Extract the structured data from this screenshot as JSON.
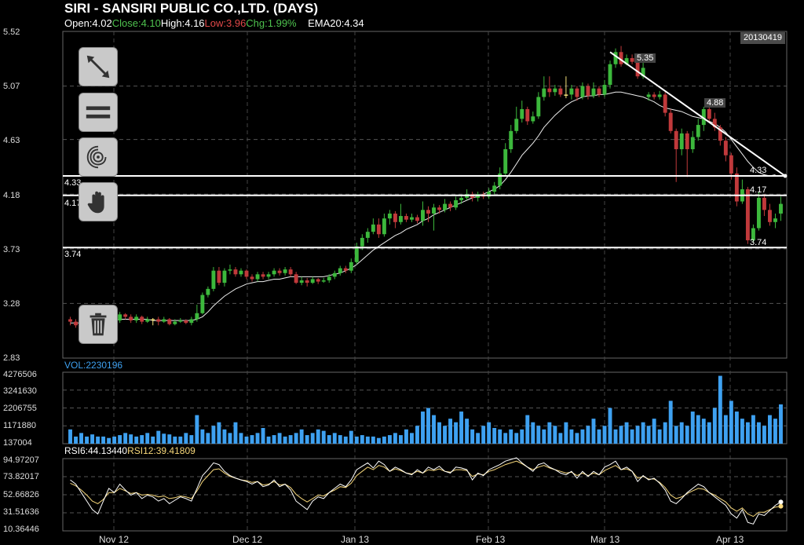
{
  "header": {
    "title": "SIRI - SANSIRI PUBLIC CO.,LTD. (DAYS)",
    "open": "Open:4.02",
    "close": "Close:4.10",
    "high": "High:4.16",
    "low": "Low:3.96",
    "chg": "Chg:1.99%",
    "ema": "EMA20:4.34"
  },
  "colors": {
    "up": "#3cb83c",
    "down": "#c0393b",
    "doji": "#f5e27a",
    "volume": "#3ea1f1",
    "open_color": "#ffffff",
    "close_color": "#4ec24e",
    "high_color": "#ffffff",
    "low_color": "#e04848",
    "chg_color": "#4ec24e",
    "rsi6": "#ffffff",
    "rsi12": "#f6d77a"
  },
  "price_axis": [
    "5.52",
    "5.07",
    "4.63",
    "4.18",
    "3.73",
    "3.28",
    "2.83"
  ],
  "date_badge": "20130419",
  "x_labels": [
    "Nov 12",
    "Dec 12",
    "Jan 13",
    "Feb 13",
    "Mar 13",
    "Apr 13"
  ],
  "trendline_labels": [
    "5.35",
    "4.88",
    "4.33",
    "4.17",
    "3.74"
  ],
  "hlines": [
    {
      "value": 4.33,
      "left_label": "4.33",
      "right_label": "4.33"
    },
    {
      "value": 4.17,
      "left_label": "4.17",
      "right_label": "4.17"
    },
    {
      "value": 3.74,
      "left_label": "3.74",
      "right_label": "3.74"
    }
  ],
  "volume": {
    "title": "VOL:2230196",
    "axis": [
      "4276506",
      "3241630",
      "2206755",
      "1171880",
      "137004"
    ]
  },
  "rsi": {
    "title6": "RSI6:44.13440",
    "title12": "RSI12:39.41809",
    "axis": [
      "94.97207",
      "73.82017",
      "52.66826",
      "31.51636",
      "10.36446"
    ]
  },
  "tools": [
    {
      "name": "draw-line-icon"
    },
    {
      "name": "hline-icon"
    },
    {
      "name": "fingerprint-icon"
    },
    {
      "name": "hand-icon"
    },
    {
      "name": "trash-icon"
    }
  ],
  "chart_data": {
    "type": "candlestick",
    "title": "SIRI - SANSIRI PUBLIC CO.,LTD. (DAYS)",
    "ylim": [
      2.83,
      5.52
    ],
    "candles": [
      [
        3.15,
        3.13,
        3.17,
        3.1
      ],
      [
        3.13,
        3.1,
        3.15,
        3.08
      ],
      [
        3.1,
        3.13,
        3.16,
        3.08
      ],
      [
        3.13,
        3.13,
        3.14,
        3.12
      ],
      [
        3.12,
        3.04,
        3.14,
        3.0
      ],
      [
        3.04,
        3.1,
        3.13,
        3.02
      ],
      [
        3.1,
        3.12,
        3.15,
        3.08
      ],
      [
        3.12,
        3.17,
        3.19,
        3.1
      ],
      [
        3.17,
        3.14,
        3.19,
        3.12
      ],
      [
        3.14,
        3.19,
        3.21,
        3.12
      ],
      [
        3.19,
        3.17,
        3.2,
        3.15
      ],
      [
        3.17,
        3.14,
        3.19,
        3.12
      ],
      [
        3.14,
        3.17,
        3.19,
        3.12
      ],
      [
        3.17,
        3.13,
        3.18,
        3.11
      ],
      [
        3.13,
        3.15,
        3.17,
        3.12
      ],
      [
        3.15,
        3.15,
        3.16,
        3.1
      ],
      [
        3.15,
        3.13,
        3.17,
        3.1
      ],
      [
        3.13,
        3.15,
        3.17,
        3.12
      ],
      [
        3.15,
        3.11,
        3.16,
        3.1
      ],
      [
        3.11,
        3.13,
        3.15,
        3.1
      ],
      [
        3.13,
        3.14,
        3.16,
        3.12
      ],
      [
        3.14,
        3.12,
        3.15,
        3.11
      ],
      [
        3.12,
        3.15,
        3.17,
        3.1
      ],
      [
        3.15,
        3.2,
        3.27,
        3.13
      ],
      [
        3.2,
        3.35,
        3.37,
        3.19
      ],
      [
        3.35,
        3.4,
        3.42,
        3.33
      ],
      [
        3.4,
        3.55,
        3.58,
        3.38
      ],
      [
        3.55,
        3.45,
        3.58,
        3.43
      ],
      [
        3.45,
        3.55,
        3.57,
        3.42
      ],
      [
        3.55,
        3.56,
        3.6,
        3.52
      ],
      [
        3.56,
        3.52,
        3.58,
        3.5
      ],
      [
        3.52,
        3.55,
        3.57,
        3.5
      ],
      [
        3.55,
        3.5,
        3.56,
        3.48
      ],
      [
        3.5,
        3.48,
        3.52,
        3.46
      ],
      [
        3.48,
        3.52,
        3.54,
        3.46
      ],
      [
        3.52,
        3.5,
        3.54,
        3.48
      ],
      [
        3.5,
        3.52,
        3.54,
        3.48
      ],
      [
        3.52,
        3.55,
        3.57,
        3.5
      ],
      [
        3.55,
        3.53,
        3.57,
        3.51
      ],
      [
        3.53,
        3.56,
        3.58,
        3.51
      ],
      [
        3.56,
        3.52,
        3.58,
        3.5
      ],
      [
        3.52,
        3.45,
        3.54,
        3.44
      ],
      [
        3.45,
        3.47,
        3.5,
        3.43
      ],
      [
        3.47,
        3.45,
        3.49,
        3.42
      ],
      [
        3.45,
        3.48,
        3.5,
        3.44
      ],
      [
        3.48,
        3.46,
        3.49,
        3.44
      ],
      [
        3.46,
        3.47,
        3.49,
        3.45
      ],
      [
        3.47,
        3.5,
        3.52,
        3.45
      ],
      [
        3.5,
        3.53,
        3.55,
        3.48
      ],
      [
        3.53,
        3.57,
        3.59,
        3.51
      ],
      [
        3.57,
        3.55,
        3.59,
        3.53
      ],
      [
        3.55,
        3.62,
        3.65,
        3.53
      ],
      [
        3.62,
        3.75,
        3.78,
        3.6
      ],
      [
        3.75,
        3.82,
        3.85,
        3.72
      ],
      [
        3.82,
        3.87,
        3.9,
        3.78
      ],
      [
        3.87,
        3.93,
        3.98,
        3.85
      ],
      [
        3.93,
        3.85,
        3.98,
        3.82
      ],
      [
        3.85,
        3.98,
        4.02,
        3.83
      ],
      [
        3.98,
        4.02,
        4.05,
        3.93
      ],
      [
        4.02,
        3.95,
        4.04,
        3.9
      ],
      [
        3.95,
        4.0,
        4.1,
        3.93
      ],
      [
        4.0,
        3.97,
        4.02,
        3.95
      ],
      [
        3.97,
        3.99,
        4.02,
        3.95
      ],
      [
        3.99,
        3.96,
        4.01,
        3.94
      ],
      [
        3.96,
        4.05,
        4.12,
        3.92
      ],
      [
        4.05,
        4.02,
        4.08,
        3.95
      ],
      [
        4.02,
        4.07,
        4.1,
        3.88
      ],
      [
        4.07,
        4.05,
        4.09,
        4.02
      ],
      [
        4.05,
        4.1,
        4.14,
        4.03
      ],
      [
        4.1,
        4.07,
        4.12,
        4.04
      ],
      [
        4.07,
        4.13,
        4.16,
        4.05
      ],
      [
        4.13,
        4.15,
        4.17,
        4.1
      ],
      [
        4.15,
        4.18,
        4.22,
        4.13
      ],
      [
        4.18,
        4.15,
        4.2,
        4.12
      ],
      [
        4.15,
        4.18,
        4.2,
        4.12
      ],
      [
        4.18,
        4.16,
        4.2,
        4.14
      ],
      [
        4.16,
        4.2,
        4.23,
        4.14
      ],
      [
        4.2,
        4.25,
        4.28,
        4.18
      ],
      [
        4.25,
        4.35,
        4.4,
        4.22
      ],
      [
        4.35,
        4.55,
        4.6,
        4.33
      ],
      [
        4.55,
        4.7,
        4.75,
        4.52
      ],
      [
        4.7,
        4.8,
        4.9,
        4.68
      ],
      [
        4.8,
        4.88,
        4.95,
        4.77
      ],
      [
        4.88,
        4.78,
        4.9,
        4.75
      ],
      [
        4.78,
        4.82,
        4.86,
        4.76
      ],
      [
        4.82,
        4.98,
        5.02,
        4.8
      ],
      [
        4.98,
        5.05,
        5.15,
        4.95
      ],
      [
        5.05,
        5.02,
        5.15,
        4.98
      ],
      [
        5.02,
        5.05,
        5.08,
        4.99
      ],
      [
        5.05,
        5.0,
        5.07,
        4.98
      ],
      [
        5.0,
        5.0,
        5.15,
        4.97
      ],
      [
        5.0,
        5.05,
        5.08,
        4.96
      ],
      [
        5.05,
        4.98,
        5.07,
        4.95
      ],
      [
        4.98,
        5.07,
        5.1,
        4.96
      ],
      [
        5.07,
        4.99,
        5.09,
        4.96
      ],
      [
        4.99,
        5.05,
        5.1,
        4.97
      ],
      [
        5.05,
        5.0,
        5.07,
        4.98
      ],
      [
        5.0,
        5.08,
        5.12,
        4.98
      ],
      [
        5.08,
        5.25,
        5.28,
        5.05
      ],
      [
        5.25,
        5.35,
        5.38,
        5.22
      ],
      [
        5.35,
        5.25,
        5.4,
        5.23
      ],
      [
        5.25,
        5.3,
        5.33,
        5.24
      ],
      [
        5.3,
        5.27,
        5.33,
        5.25
      ],
      [
        5.27,
        5.15,
        5.3,
        5.13
      ],
      [
        5.15,
        5.22,
        5.3,
        5.13
      ],
      [
        4.98,
        5.0,
        5.02,
        4.95
      ],
      [
        5.0,
        4.98,
        5.02,
        4.96
      ],
      [
        4.98,
        5.0,
        5.03,
        4.96
      ],
      [
        5.0,
        4.85,
        5.02,
        4.82
      ],
      [
        4.85,
        4.7,
        4.88,
        4.68
      ],
      [
        4.7,
        4.55,
        4.72,
        4.28
      ],
      [
        4.55,
        4.68,
        4.72,
        4.5
      ],
      [
        4.68,
        4.55,
        4.7,
        4.32
      ],
      [
        4.55,
        4.65,
        4.7,
        4.52
      ],
      [
        4.65,
        4.75,
        4.8,
        4.62
      ],
      [
        4.75,
        4.88,
        4.9,
        4.7
      ],
      [
        4.88,
        4.8,
        4.95,
        4.78
      ],
      [
        4.8,
        4.73,
        4.85,
        4.7
      ],
      [
        4.73,
        4.62,
        4.75,
        4.58
      ],
      [
        4.62,
        4.5,
        4.65,
        4.45
      ],
      [
        4.5,
        4.35,
        4.52,
        4.3
      ],
      [
        4.35,
        4.12,
        4.4,
        4.08
      ],
      [
        4.12,
        4.22,
        4.3,
        4.1
      ],
      [
        4.22,
        3.8,
        4.24,
        3.77
      ],
      [
        3.8,
        3.9,
        3.93,
        3.78
      ],
      [
        3.9,
        4.15,
        4.2,
        3.88
      ],
      [
        4.15,
        4.05,
        4.18,
        4.0
      ],
      [
        4.05,
        3.95,
        4.1,
        3.92
      ],
      [
        3.95,
        3.98,
        4.02,
        3.9
      ],
      [
        4.02,
        4.1,
        4.16,
        3.96
      ]
    ],
    "ema20": [
      3.12,
      3.12,
      3.12,
      3.12,
      3.12,
      3.12,
      3.13,
      3.13,
      3.14,
      3.15,
      3.15,
      3.15,
      3.15,
      3.15,
      3.15,
      3.14,
      3.14,
      3.14,
      3.14,
      3.14,
      3.14,
      3.14,
      3.14,
      3.15,
      3.17,
      3.21,
      3.26,
      3.3,
      3.34,
      3.37,
      3.4,
      3.42,
      3.44,
      3.45,
      3.46,
      3.46,
      3.47,
      3.48,
      3.48,
      3.49,
      3.5,
      3.5,
      3.5,
      3.5,
      3.5,
      3.5,
      3.5,
      3.51,
      3.52,
      3.53,
      3.55,
      3.57,
      3.6,
      3.64,
      3.68,
      3.72,
      3.75,
      3.78,
      3.81,
      3.84,
      3.86,
      3.89,
      3.91,
      3.93,
      3.96,
      3.98,
      4.01,
      4.03,
      4.05,
      4.07,
      4.09,
      4.11,
      4.13,
      4.15,
      4.16,
      4.18,
      4.2,
      4.22,
      4.25,
      4.3,
      4.36,
      4.43,
      4.5,
      4.55,
      4.6,
      4.66,
      4.73,
      4.78,
      4.83,
      4.87,
      4.91,
      4.94,
      4.96,
      4.98,
      4.99,
      4.99,
      5.0,
      5.0,
      5.01,
      5.02,
      5.02,
      5.01,
      5.0,
      4.99,
      4.98,
      4.96,
      4.94,
      4.91,
      4.89,
      4.88,
      4.87,
      4.86,
      4.84,
      4.82,
      4.81,
      4.8,
      4.78,
      4.76,
      4.73,
      4.69,
      4.63,
      4.57,
      4.51,
      4.45,
      4.4,
      4.36,
      4.34,
      4.33,
      4.34
    ],
    "volume": [
      0.2,
      0.1,
      0.15,
      0.1,
      0.13,
      0.1,
      0.1,
      0.08,
      0.1,
      0.12,
      0.15,
      0.13,
      0.1,
      0.12,
      0.15,
      0.1,
      0.18,
      0.14,
      0.13,
      0.1,
      0.1,
      0.15,
      0.12,
      0.4,
      0.2,
      0.15,
      0.25,
      0.3,
      0.2,
      0.15,
      0.3,
      0.15,
      0.1,
      0.12,
      0.15,
      0.22,
      0.1,
      0.12,
      0.15,
      0.1,
      0.12,
      0.15,
      0.2,
      0.12,
      0.15,
      0.2,
      0.18,
      0.12,
      0.15,
      0.12,
      0.1,
      0.18,
      0.1,
      0.12,
      0.1,
      0.1,
      0.08,
      0.1,
      0.12,
      0.15,
      0.12,
      0.2,
      0.15,
      0.25,
      0.45,
      0.5,
      0.4,
      0.3,
      0.25,
      0.35,
      0.3,
      0.45,
      0.35,
      0.2,
      0.15,
      0.25,
      0.3,
      0.22,
      0.2,
      0.15,
      0.2,
      0.15,
      0.2,
      0.4,
      0.3,
      0.25,
      0.2,
      0.3,
      0.25,
      0.15,
      0.3,
      0.2,
      0.15,
      0.2,
      0.25,
      0.35,
      0.2,
      0.25,
      0.5,
      0.2,
      0.25,
      0.3,
      0.2,
      0.25,
      0.3,
      0.25,
      0.35,
      0.2,
      0.3,
      0.6,
      0.25,
      0.3,
      0.25,
      0.45,
      0.4,
      0.35,
      0.3,
      0.5,
      0.95,
      0.4,
      0.6,
      0.45,
      0.35,
      0.3,
      0.4,
      0.3,
      0.25,
      0.4,
      0.35,
      0.55
    ],
    "rsi6": [
      70,
      65,
      55,
      45,
      35,
      30,
      45,
      60,
      55,
      65,
      58,
      52,
      55,
      48,
      52,
      50,
      45,
      48,
      42,
      46,
      50,
      48,
      45,
      60,
      75,
      82,
      90,
      88,
      80,
      75,
      72,
      70,
      68,
      65,
      68,
      62,
      64,
      70,
      62,
      65,
      58,
      45,
      40,
      35,
      45,
      50,
      48,
      55,
      60,
      65,
      62,
      70,
      82,
      86,
      90,
      84,
      92,
      88,
      80,
      85,
      82,
      78,
      76,
      82,
      78,
      85,
      82,
      86,
      80,
      78,
      85,
      84,
      82,
      70,
      78,
      75,
      82,
      85,
      88,
      92,
      94,
      96,
      90,
      85,
      80,
      88,
      90,
      85,
      82,
      78,
      76,
      80,
      72,
      80,
      74,
      80,
      76,
      85,
      88,
      92,
      82,
      85,
      80,
      68,
      75,
      70,
      72,
      66,
      58,
      45,
      42,
      48,
      55,
      60,
      65,
      62,
      55,
      50,
      45,
      40,
      30,
      25,
      35,
      20,
      18,
      30,
      28,
      34,
      40,
      44
    ],
    "rsi12": [
      66,
      63,
      58,
      52,
      45,
      42,
      47,
      55,
      55,
      60,
      57,
      54,
      55,
      52,
      53,
      52,
      50,
      51,
      48,
      49,
      51,
      50,
      48,
      57,
      68,
      75,
      82,
      83,
      78,
      74,
      72,
      70,
      69,
      67,
      68,
      64,
      65,
      68,
      64,
      65,
      61,
      53,
      48,
      44,
      48,
      52,
      51,
      55,
      58,
      62,
      61,
      66,
      75,
      80,
      85,
      82,
      87,
      85,
      80,
      83,
      81,
      78,
      77,
      80,
      78,
      82,
      81,
      83,
      80,
      79,
      82,
      82,
      81,
      74,
      77,
      76,
      80,
      82,
      85,
      88,
      90,
      92,
      89,
      85,
      82,
      85,
      87,
      84,
      82,
      80,
      78,
      79,
      75,
      78,
      75,
      78,
      76,
      81,
      84,
      87,
      82,
      83,
      80,
      72,
      74,
      71,
      71,
      67,
      61,
      52,
      48,
      50,
      54,
      57,
      60,
      59,
      55,
      52,
      48,
      44,
      37,
      33,
      37,
      30,
      27,
      32,
      32,
      35,
      38,
      39
    ]
  }
}
